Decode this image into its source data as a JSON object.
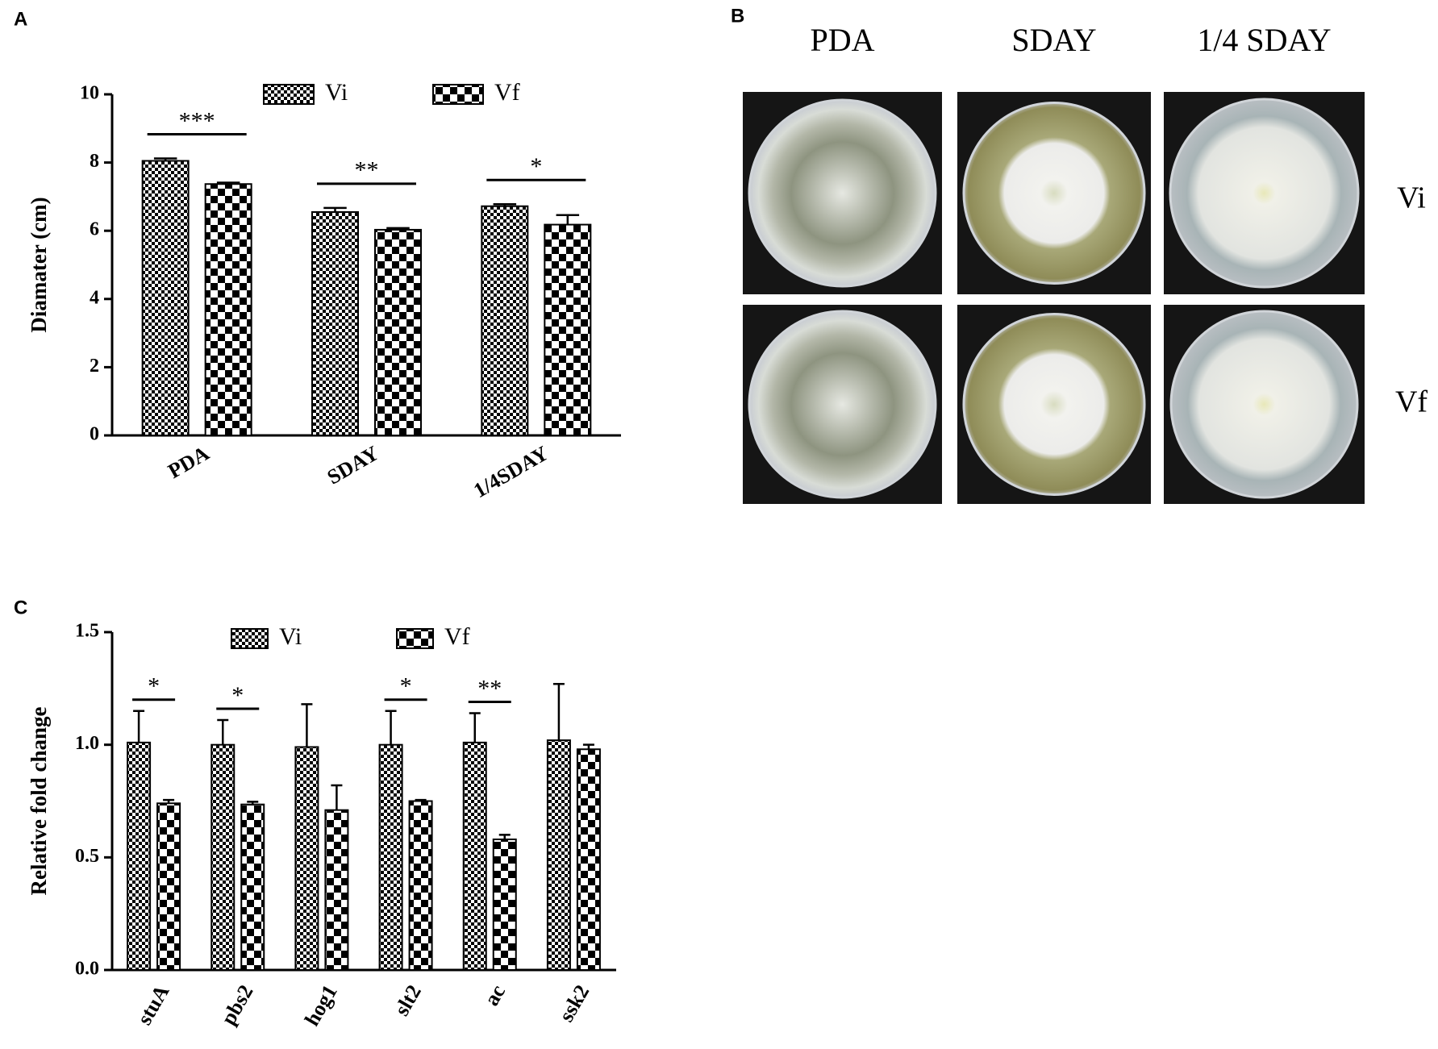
{
  "chart_data": [
    {
      "type": "bar",
      "panel": "A",
      "y_label": "Diamater (cm)",
      "categories": [
        "PDA",
        "SDAY",
        "1/4SDAY"
      ],
      "series": [
        {
          "name": "Vi",
          "color": "#000000",
          "pattern": "fine-check",
          "values": [
            8.05,
            6.55,
            6.72
          ],
          "errors": [
            0.07,
            0.12,
            0.06
          ]
        },
        {
          "name": "Vf",
          "color": "#000000",
          "pattern": "coarse-check",
          "values": [
            7.37,
            6.03,
            6.18
          ],
          "errors": [
            0.04,
            0.05,
            0.28
          ]
        }
      ],
      "significance": [
        "***",
        "**",
        "*"
      ],
      "ylim": [
        0,
        10
      ],
      "yticks": [
        0,
        2,
        4,
        6,
        8,
        10
      ],
      "grid": false
    },
    {
      "type": "bar",
      "panel": "C",
      "y_label": "Relative fold change",
      "categories": [
        "stuA",
        "pbs2",
        "hog1",
        "slt2",
        "ac",
        "ssk2"
      ],
      "series": [
        {
          "name": "Vi",
          "color": "#000000",
          "pattern": "fine-check",
          "values": [
            1.01,
            1.0,
            0.99,
            1.0,
            1.01,
            1.02
          ],
          "errors": [
            0.14,
            0.11,
            0.19,
            0.15,
            0.13,
            0.25
          ]
        },
        {
          "name": "Vf",
          "color": "#000000",
          "pattern": "coarse-check",
          "values": [
            0.74,
            0.735,
            0.71,
            0.75,
            0.58,
            0.98
          ],
          "errors": [
            0.015,
            0.012,
            0.11,
            0.005,
            0.02,
            0.02
          ]
        }
      ],
      "significance": [
        "*",
        "*",
        null,
        "*",
        "**",
        null
      ],
      "ylim": [
        0,
        1.5
      ],
      "yticks": [
        {
          "value": 0,
          "label": "0.0"
        },
        0.5,
        {
          "value": 1,
          "label": "1.0"
        },
        1.5
      ],
      "grid": false
    }
  ],
  "panel_b": {
    "label": "B",
    "columns": [
      "PDA",
      "SDAY",
      "1/4 SDAY"
    ],
    "rows": [
      "Vi",
      "Vf"
    ]
  }
}
